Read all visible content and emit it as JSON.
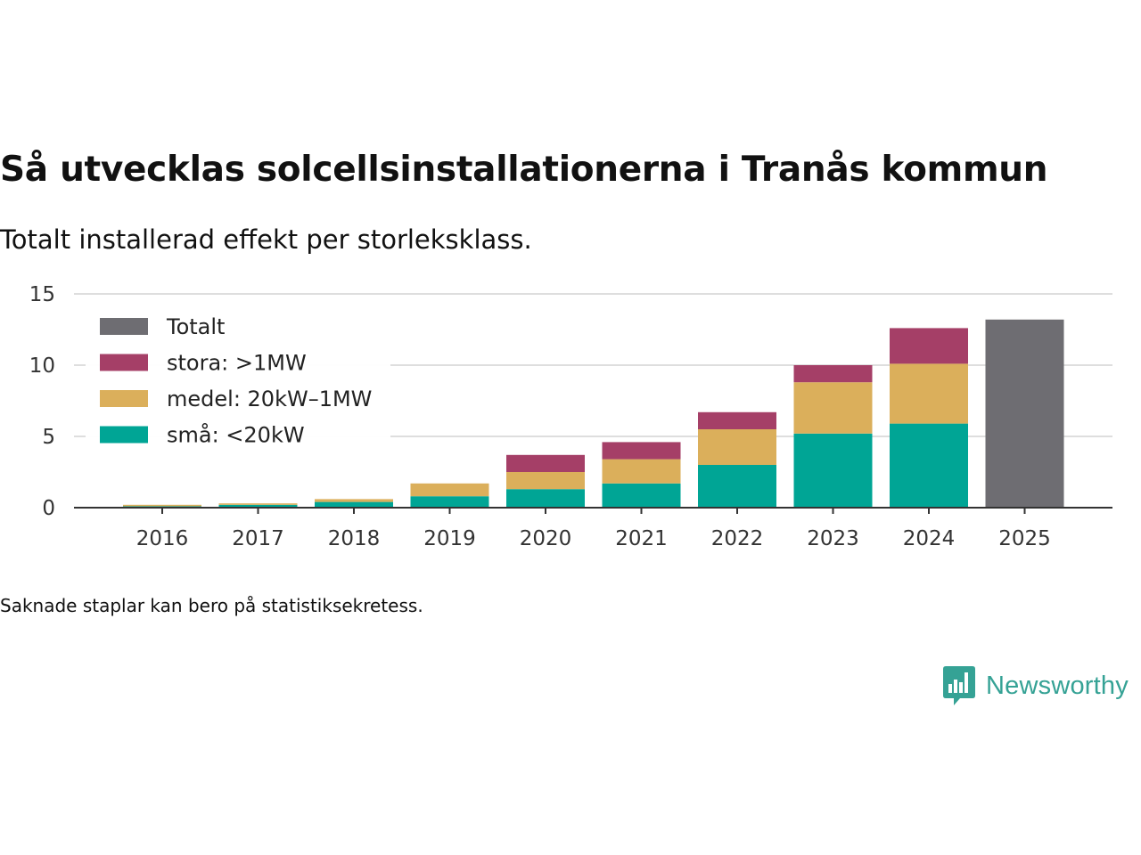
{
  "title": "Så utvecklas solcellsinstallationerna i Tranås kommun",
  "subtitle": "Totalt installerad effekt per storleksklass.",
  "footnote": "Saknade staplar kan bero på statistiksekretess.",
  "brand": {
    "name": "Newsworthy",
    "color": "#35a295",
    "icon": "bar-chart-speech-bubble-icon"
  },
  "chart_data": {
    "type": "bar",
    "stacked": true,
    "categories": [
      "2016",
      "2017",
      "2018",
      "2019",
      "2020",
      "2021",
      "2022",
      "2023",
      "2024",
      "2025"
    ],
    "series": [
      {
        "name": "små: <20kW",
        "color": "#00a595",
        "values": [
          0.1,
          0.2,
          0.4,
          0.8,
          1.3,
          1.7,
          3.0,
          5.2,
          5.9,
          0
        ]
      },
      {
        "name": "medel: 20kW–1MW",
        "color": "#dbaf5b",
        "values": [
          0.1,
          0.1,
          0.2,
          0.9,
          1.2,
          1.7,
          2.5,
          3.6,
          4.2,
          0
        ]
      },
      {
        "name": "stora: >1MW",
        "color": "#a53f67",
        "values": [
          0,
          0,
          0,
          0,
          1.2,
          1.2,
          1.2,
          1.2,
          2.5,
          0
        ]
      },
      {
        "name": "Totalt",
        "color": "#6e6d72",
        "values": [
          0,
          0,
          0,
          0,
          0,
          0,
          0,
          0,
          0,
          13.2
        ]
      }
    ],
    "legend_order": [
      "Totalt",
      "stora: >1MW",
      "medel: 20kW–1MW",
      "små: <20kW"
    ],
    "legend_position": "top-left",
    "yticks": [
      0,
      5,
      10,
      15
    ],
    "ylim": [
      0,
      15
    ],
    "grid": true,
    "xlabel": "",
    "ylabel": ""
  }
}
